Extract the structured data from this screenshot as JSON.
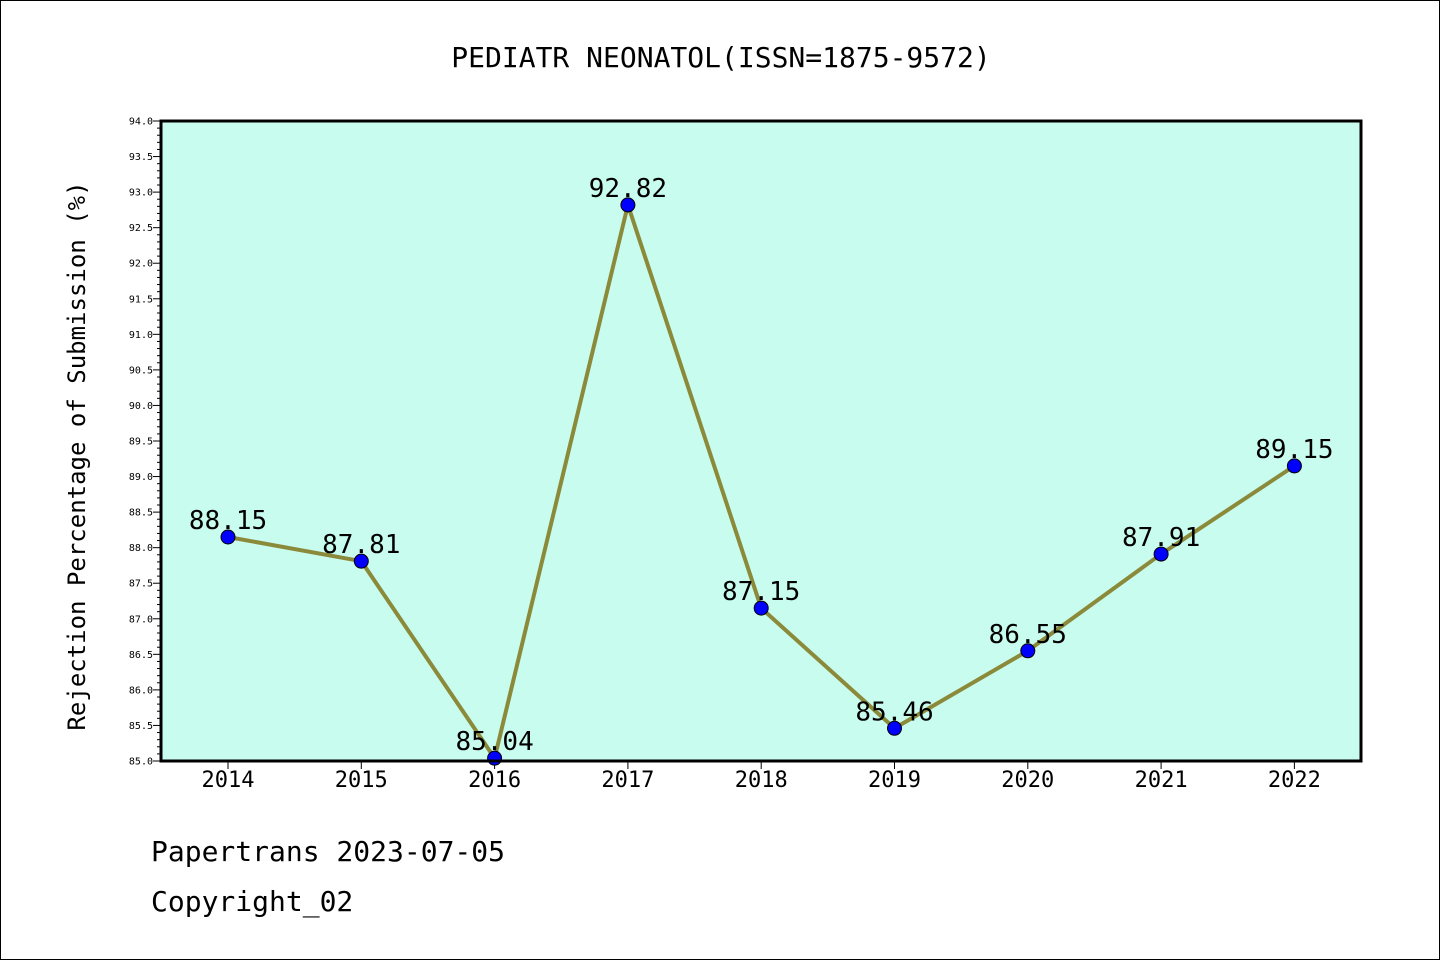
{
  "chart_data": {
    "type": "line",
    "title": "PEDIATR NEONATOL(ISSN=1875-9572)",
    "xlabel": "",
    "ylabel": "Rejection Percentage of Submission (%)",
    "categories": [
      "2014",
      "2015",
      "2016",
      "2017",
      "2018",
      "2019",
      "2020",
      "2021",
      "2022"
    ],
    "series": [
      {
        "values": [
          88.15,
          87.81,
          85.04,
          92.82,
          87.15,
          85.46,
          86.55,
          87.91,
          89.15
        ],
        "labels": [
          "88.15",
          "87.81",
          "85.04",
          "92.82",
          "87.15",
          "85.46",
          "86.55",
          "87.91",
          "89.15"
        ],
        "line_color": "#8b8a3a",
        "marker_color": "#0000ff"
      }
    ],
    "ylim": [
      85.0,
      94.0
    ],
    "yticks": [
      "85.0",
      "85.5",
      "86.0",
      "86.5",
      "87.0",
      "87.5",
      "88.0",
      "88.5",
      "89.0",
      "89.5",
      "90.0",
      "90.5",
      "91.0",
      "91.5",
      "92.0",
      "92.5",
      "93.0",
      "93.5",
      "94.0"
    ],
    "plot_background": "#c8fcee",
    "grid": false,
    "legend": "none"
  },
  "footer": {
    "line1": "Papertrans 2023-07-05",
    "line2": "Copyright_02"
  }
}
